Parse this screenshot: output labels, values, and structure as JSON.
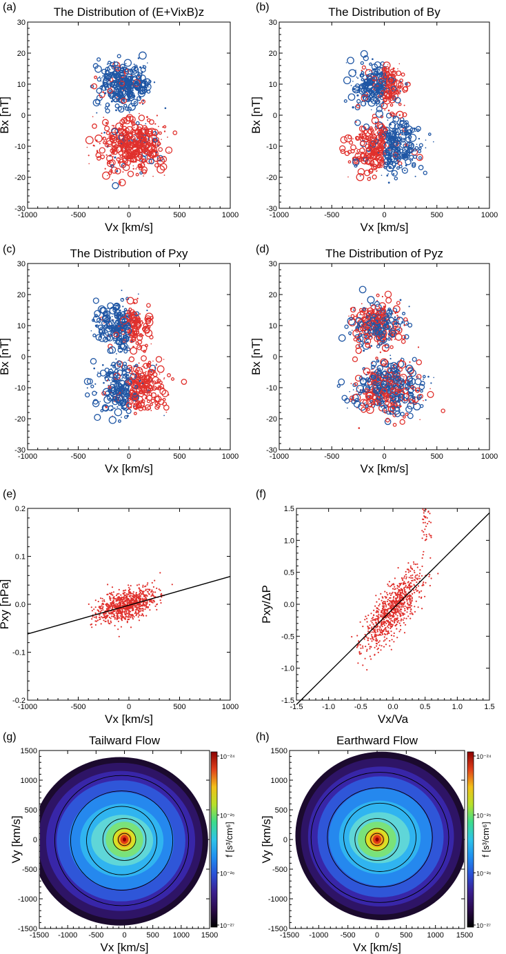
{
  "colors": {
    "red": "#e0302c",
    "blue": "#1f56a4",
    "line": "#000000"
  },
  "colorbar_stops": [
    "#000000",
    "#2a0a4a",
    "#3a1f8e",
    "#2a4fd6",
    "#1f8ff0",
    "#2ec4e8",
    "#3ddc8a",
    "#b8e02a",
    "#f2c019",
    "#e0401a",
    "#8b0000"
  ],
  "chart_data": [
    {
      "id": "a",
      "panel_label": "(a)",
      "type": "scatter",
      "title": "The Distribution of (E+VixB)z",
      "xlabel": "Vx [km/s]",
      "ylabel": "Bx [nT]",
      "xlim": [
        -1000,
        1000
      ],
      "ylim": [
        -30,
        30
      ],
      "xticks": [
        -1000,
        -500,
        0,
        500,
        1000
      ],
      "yticks": [
        -30,
        -20,
        -10,
        0,
        10,
        20,
        30
      ],
      "color_rule": "y",
      "seed": 11
    },
    {
      "id": "b",
      "panel_label": "(b)",
      "type": "scatter",
      "title": "The Distribution of By",
      "xlabel": "Vx [km/s]",
      "ylabel": "Bx [nT]",
      "xlim": [
        -1000,
        1000
      ],
      "ylim": [
        -30,
        30
      ],
      "xticks": [
        -1000,
        -500,
        0,
        500,
        1000
      ],
      "yticks": [
        -30,
        -20,
        -10,
        0,
        10,
        20,
        30
      ],
      "color_rule": "xy",
      "seed": 23
    },
    {
      "id": "c",
      "panel_label": "(c)",
      "type": "scatter",
      "title": "The Distribution of Pxy",
      "xlabel": "Vx [km/s]",
      "ylabel": "Bx [nT]",
      "xlim": [
        -1000,
        1000
      ],
      "ylim": [
        -30,
        30
      ],
      "xticks": [
        -1000,
        -500,
        0,
        500,
        1000
      ],
      "yticks": [
        -30,
        -20,
        -10,
        0,
        10,
        20,
        30
      ],
      "color_rule": "x",
      "seed": 37
    },
    {
      "id": "d",
      "panel_label": "(d)",
      "type": "scatter",
      "title": "The Distribution of Pyz",
      "xlabel": "Vx [km/s]",
      "ylabel": "Bx [nT]",
      "xlim": [
        -1000,
        1000
      ],
      "ylim": [
        -30,
        30
      ],
      "xticks": [
        -1000,
        -500,
        0,
        500,
        1000
      ],
      "yticks": [
        -30,
        -20,
        -10,
        0,
        10,
        20,
        30
      ],
      "color_rule": "mixed",
      "seed": 41
    },
    {
      "id": "e",
      "panel_label": "(e)",
      "type": "scatter",
      "title": "",
      "xlabel": "Vx [km/s]",
      "ylabel": "Pxy [nPa]",
      "xlim": [
        -1000,
        1000
      ],
      "ylim": [
        -0.2,
        0.2
      ],
      "xticks": [
        -1000,
        -500,
        0,
        500,
        1000
      ],
      "yticks": [
        -0.2,
        -0.1,
        0.0,
        0.1,
        0.2
      ],
      "ytick_labels": [
        "-0.2",
        "-0.1",
        "0.0",
        "0.1",
        "0.2"
      ],
      "fit_line": {
        "x": [
          -1000,
          1000
        ],
        "y": [
          -0.062,
          0.058
        ]
      },
      "seed": 53
    },
    {
      "id": "f",
      "panel_label": "(f)",
      "type": "scatter",
      "title": "",
      "xlabel": "Vx/Va",
      "ylabel": "Pxy/ΔP",
      "xlim": [
        -1.5,
        1.5
      ],
      "ylim": [
        -1.5,
        1.5
      ],
      "xticks": [
        -1.5,
        -1.0,
        -0.5,
        0.0,
        0.5,
        1.0,
        1.5
      ],
      "xtick_labels": [
        "-1.5",
        "-1.0",
        "-0.5",
        "0.0",
        "0.5",
        "1.0",
        "1.5"
      ],
      "yticks": [
        -1.5,
        -1.0,
        -0.5,
        0.0,
        0.5,
        1.0,
        1.5
      ],
      "ytick_labels": [
        "-1.5",
        "-1.0",
        "-0.5",
        "0.0",
        "0.5",
        "1.0",
        "1.5"
      ],
      "fit_line": {
        "x": [
          -1.5,
          1.5
        ],
        "y": [
          -1.57,
          1.43
        ]
      },
      "seed": 67
    },
    {
      "id": "g",
      "panel_label": "(g)",
      "type": "heatmap",
      "title": "Tailward Flow",
      "xlabel": "Vx [km/s]",
      "ylabel": "Vy [km/s]",
      "xlim": [
        -1500,
        1500
      ],
      "ylim": [
        -1500,
        1500
      ],
      "xticks": [
        -1500,
        -1000,
        -500,
        0,
        500,
        1000,
        1500
      ],
      "yticks": [
        -1500,
        -1000,
        -500,
        0,
        500,
        1000,
        1500
      ],
      "colorbar_label": "f [s³/cm⁶]",
      "colorbar_ticks": [
        "10⁻²⁴",
        "10⁻²⁵",
        "10⁻²⁶",
        "10⁻²⁷"
      ],
      "peak": [
        0,
        0
      ],
      "body_center": [
        -80,
        -30
      ],
      "shape": "tail"
    },
    {
      "id": "h",
      "panel_label": "(h)",
      "type": "heatmap",
      "title": "Earthward Flow",
      "xlabel": "Vx [km/s]",
      "ylabel": "Vy [km/s]",
      "xlim": [
        -1500,
        1500
      ],
      "ylim": [
        -1500,
        1500
      ],
      "xticks": [
        -1500,
        -1000,
        -500,
        0,
        500,
        1000,
        1500
      ],
      "yticks": [
        -1500,
        -1000,
        -500,
        0,
        500,
        1000,
        1500
      ],
      "colorbar_label": "f [s³/cm⁶]",
      "colorbar_ticks": [
        "10⁻²⁴",
        "10⁻²⁵",
        "10⁻²⁶",
        "10⁻²⁷"
      ],
      "peak": [
        0,
        0
      ],
      "body_center": [
        80,
        60
      ],
      "shape": "earth"
    }
  ]
}
